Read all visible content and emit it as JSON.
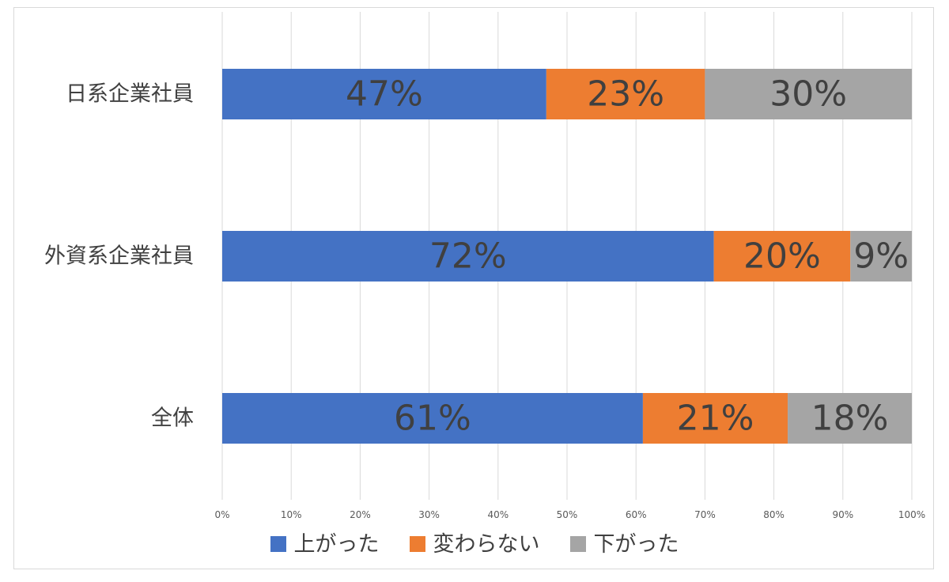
{
  "chart_data": {
    "type": "bar",
    "orientation": "horizontal",
    "stacked": "percent",
    "categories": [
      "日系企業社員",
      "外資系企業社員",
      "全体"
    ],
    "series": [
      {
        "name": "上がった",
        "color": "#4472c4",
        "values": [
          47,
          72,
          61
        ],
        "labels": [
          "47%",
          "72%",
          "61%"
        ]
      },
      {
        "name": "変わらない",
        "color": "#ed7d31",
        "values": [
          23,
          20,
          21
        ],
        "labels": [
          "23%",
          "20%",
          "21%"
        ]
      },
      {
        "name": "下がった",
        "color": "#a5a5a5",
        "values": [
          30,
          9,
          18
        ],
        "labels": [
          "30%",
          "9%",
          "18%"
        ]
      }
    ],
    "xlim": [
      0,
      100
    ],
    "x_ticks": [
      "0%",
      "10%",
      "20%",
      "30%",
      "40%",
      "50%",
      "60%",
      "70%",
      "80%",
      "90%",
      "100%"
    ],
    "grid": true,
    "legend_position": "bottom"
  },
  "legend": {
    "items": [
      {
        "label": "上がった",
        "color": "#4472c4"
      },
      {
        "label": "変わらない",
        "color": "#ed7d31"
      },
      {
        "label": "下がった",
        "color": "#a5a5a5"
      }
    ]
  }
}
